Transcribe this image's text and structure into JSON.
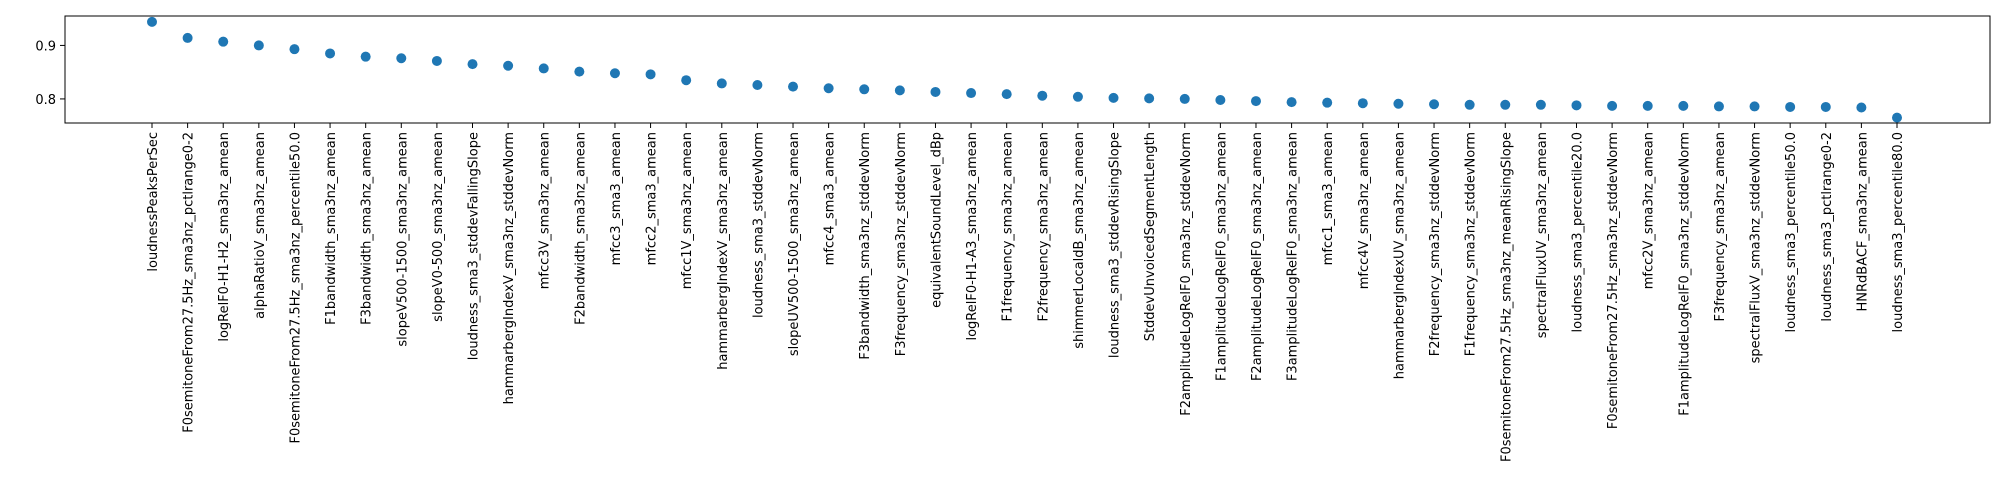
{
  "chart_data": {
    "type": "scatter",
    "title": "",
    "xlabel": "",
    "ylabel": "",
    "ylim": [
      0.755,
      0.955
    ],
    "yticks": [
      "0.8",
      "0.9"
    ],
    "ytick_values": [
      0.8,
      0.9
    ],
    "grid": false,
    "marker_color": "#1f77b4",
    "categories": [
      "loudnessPeaksPerSec",
      "F0semitoneFrom27.5Hz_sma3nz_pctlrange0-2",
      "logRelF0-H1-H2_sma3nz_amean",
      "alphaRatioV_sma3nz_amean",
      "F0semitoneFrom27.5Hz_sma3nz_percentile50.0",
      "F1bandwidth_sma3nz_amean",
      "F3bandwidth_sma3nz_amean",
      "slopeV500-1500_sma3nz_amean",
      "slopeV0-500_sma3nz_amean",
      "loudness_sma3_stddevFallingSlope",
      "hammarbergIndexV_sma3nz_stddevNorm",
      "mfcc3V_sma3nz_amean",
      "F2bandwidth_sma3nz_amean",
      "mfcc3_sma3_amean",
      "mfcc2_sma3_amean",
      "mfcc1V_sma3nz_amean",
      "hammarbergIndexV_sma3nz_amean",
      "loudness_sma3_stddevNorm",
      "slopeUV500-1500_sma3nz_amean",
      "mfcc4_sma3_amean",
      "F3bandwidth_sma3nz_stddevNorm",
      "F3frequency_sma3nz_stddevNorm",
      "equivalentSoundLevel_dBp",
      "logRelF0-H1-A3_sma3nz_amean",
      "F1frequency_sma3nz_amean",
      "F2frequency_sma3nz_amean",
      "shimmerLocaldB_sma3nz_amean",
      "loudness_sma3_stddevRisingSlope",
      "StddevUnvoicedSegmentLength",
      "F2amplitudeLogRelF0_sma3nz_stddevNorm",
      "F1amplitudeLogRelF0_sma3nz_amean",
      "F2amplitudeLogRelF0_sma3nz_amean",
      "F3amplitudeLogRelF0_sma3nz_amean",
      "mfcc1_sma3_amean",
      "mfcc4V_sma3nz_amean",
      "hammarbergIndexUV_sma3nz_amean",
      "F2frequency_sma3nz_stddevNorm",
      "F1frequency_sma3nz_stddevNorm",
      "F0semitoneFrom27.5Hz_sma3nz_meanRisingSlope",
      "spectralFluxUV_sma3nz_amean",
      "loudness_sma3_percentile20.0",
      "F0semitoneFrom27.5Hz_sma3nz_stddevNorm",
      "mfcc2V_sma3nz_amean",
      "F1amplitudeLogRelF0_sma3nz_stddevNorm",
      "F3frequency_sma3nz_amean",
      "spectralFluxV_sma3nz_stddevNorm",
      "loudness_sma3_percentile50.0",
      "loudness_sma3_pctlrange0-2",
      "HNRdBACF_sma3nz_amean",
      "loudness_sma3_percentile80.0"
    ],
    "values": [
      0.944,
      0.914,
      0.907,
      0.9,
      0.893,
      0.885,
      0.879,
      0.876,
      0.871,
      0.865,
      0.862,
      0.857,
      0.851,
      0.848,
      0.846,
      0.835,
      0.829,
      0.826,
      0.823,
      0.82,
      0.818,
      0.816,
      0.813,
      0.811,
      0.809,
      0.806,
      0.804,
      0.802,
      0.801,
      0.8,
      0.798,
      0.796,
      0.794,
      0.793,
      0.792,
      0.791,
      0.79,
      0.789,
      0.789,
      0.789,
      0.788,
      0.787,
      0.787,
      0.787,
      0.786,
      0.786,
      0.785,
      0.785,
      0.784,
      0.765
    ]
  }
}
